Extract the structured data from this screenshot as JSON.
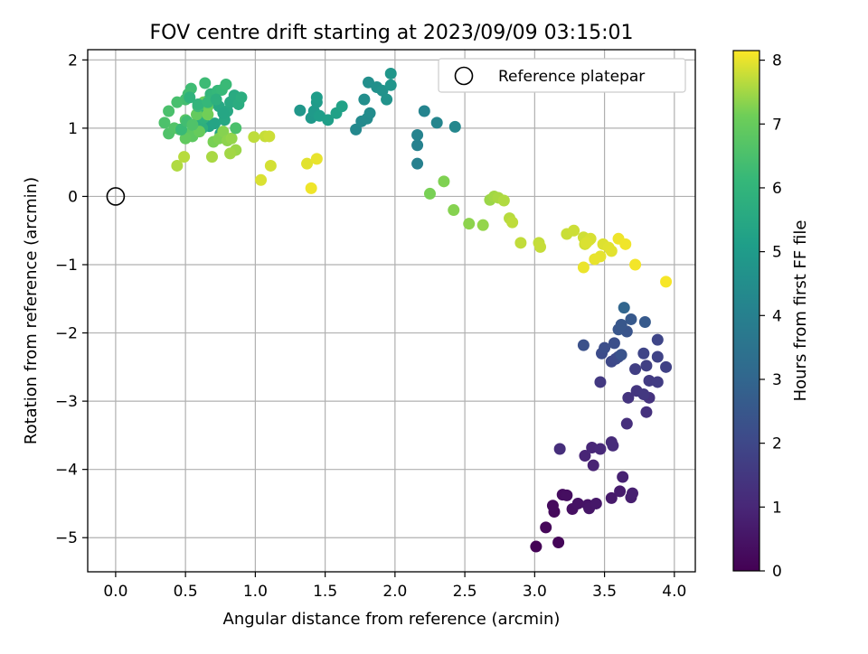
{
  "chart_data": {
    "type": "scatter",
    "title": "FOV centre drift starting at 2023/09/09 03:15:01",
    "xlabel": "Angular distance from reference (arcmin)",
    "ylabel": "Rotation from reference (arcmin)",
    "xlim": [
      -0.2,
      4.15
    ],
    "ylim": [
      -5.5,
      2.15
    ],
    "xticks": [
      0.0,
      0.5,
      1.0,
      1.5,
      2.0,
      2.5,
      3.0,
      3.5,
      4.0
    ],
    "xtick_labels": [
      "0.0",
      "0.5",
      "1.0",
      "1.5",
      "2.0",
      "2.5",
      "3.0",
      "3.5",
      "4.0"
    ],
    "yticks": [
      -5,
      -4,
      -3,
      -2,
      -1,
      0,
      1,
      2
    ],
    "ytick_labels": [
      "−5",
      "−4",
      "−3",
      "−2",
      "−1",
      "0",
      "1",
      "2"
    ],
    "grid": true,
    "legend": {
      "position": "top-right",
      "entries": [
        {
          "label": "Reference platepar",
          "marker": "open-circle"
        }
      ]
    },
    "colorbar": {
      "label": "Hours from first FF file",
      "min": 0,
      "max": 8.15,
      "ticks": [
        0,
        1,
        2,
        3,
        4,
        5,
        6,
        7,
        8
      ],
      "tick_labels": [
        "0",
        "1",
        "2",
        "3",
        "4",
        "5",
        "6",
        "7",
        "8"
      ],
      "colormap": "viridis"
    },
    "reference_point": {
      "x": 0.0,
      "y": 0.0
    },
    "points": [
      [
        3.01,
        -5.13,
        0.05
      ],
      [
        3.17,
        -5.07,
        0.1
      ],
      [
        3.08,
        -4.85,
        0.15
      ],
      [
        3.14,
        -4.62,
        0.2
      ],
      [
        3.13,
        -4.53,
        0.25
      ],
      [
        3.2,
        -4.37,
        0.3
      ],
      [
        3.23,
        -4.38,
        0.35
      ],
      [
        3.27,
        -4.58,
        0.4
      ],
      [
        3.31,
        -4.5,
        0.45
      ],
      [
        3.38,
        -4.52,
        0.5
      ],
      [
        3.39,
        -4.57,
        0.55
      ],
      [
        3.44,
        -4.5,
        0.6
      ],
      [
        3.55,
        -4.42,
        0.65
      ],
      [
        3.61,
        -4.32,
        0.7
      ],
      [
        3.69,
        -4.41,
        0.75
      ],
      [
        3.7,
        -4.35,
        0.8
      ],
      [
        3.63,
        -4.11,
        0.85
      ],
      [
        3.42,
        -3.94,
        0.9
      ],
      [
        3.36,
        -3.8,
        0.95
      ],
      [
        3.41,
        -3.68,
        1.0
      ],
      [
        3.47,
        -3.7,
        1.05
      ],
      [
        3.55,
        -3.6,
        1.1
      ],
      [
        3.56,
        -3.65,
        1.15
      ],
      [
        3.18,
        -3.7,
        1.2
      ],
      [
        3.66,
        -3.33,
        1.25
      ],
      [
        3.8,
        -3.16,
        1.3
      ],
      [
        3.82,
        -2.95,
        1.35
      ],
      [
        3.67,
        -2.95,
        1.4
      ],
      [
        3.73,
        -2.85,
        1.45
      ],
      [
        3.78,
        -2.9,
        1.5
      ],
      [
        3.47,
        -2.72,
        1.55
      ],
      [
        3.82,
        -2.7,
        1.6
      ],
      [
        3.88,
        -2.72,
        1.65
      ],
      [
        3.72,
        -2.53,
        1.7
      ],
      [
        3.8,
        -2.48,
        1.75
      ],
      [
        3.94,
        -2.5,
        1.8
      ],
      [
        3.88,
        -2.35,
        1.85
      ],
      [
        3.78,
        -2.3,
        1.9
      ],
      [
        3.88,
        -2.1,
        1.95
      ],
      [
        3.55,
        -2.42,
        2.0
      ],
      [
        3.58,
        -2.38,
        2.05
      ],
      [
        3.6,
        -2.35,
        2.1
      ],
      [
        3.48,
        -2.3,
        2.15
      ],
      [
        3.5,
        -2.22,
        2.2
      ],
      [
        3.57,
        -2.15,
        2.25
      ],
      [
        3.35,
        -2.18,
        2.3
      ],
      [
        3.62,
        -2.32,
        2.35
      ],
      [
        3.66,
        -1.98,
        2.4
      ],
      [
        3.6,
        -1.95,
        2.45
      ],
      [
        3.62,
        -1.88,
        2.5
      ],
      [
        3.69,
        -1.8,
        2.55
      ],
      [
        3.79,
        -1.84,
        2.6
      ],
      [
        3.64,
        -1.63,
        3.0
      ],
      [
        2.16,
        0.48,
        4.0
      ],
      [
        2.16,
        0.75,
        4.05
      ],
      [
        2.16,
        0.9,
        4.1
      ],
      [
        2.21,
        1.25,
        4.15
      ],
      [
        2.3,
        1.08,
        4.2
      ],
      [
        2.43,
        1.02,
        4.25
      ],
      [
        1.72,
        0.98,
        4.3
      ],
      [
        1.76,
        1.1,
        4.35
      ],
      [
        1.8,
        1.14,
        4.4
      ],
      [
        1.82,
        1.22,
        4.45
      ],
      [
        1.78,
        1.42,
        4.5
      ],
      [
        1.81,
        1.67,
        4.55
      ],
      [
        1.87,
        1.6,
        4.6
      ],
      [
        1.91,
        1.55,
        4.65
      ],
      [
        1.94,
        1.42,
        4.7
      ],
      [
        1.97,
        1.63,
        4.75
      ],
      [
        1.97,
        1.8,
        4.8
      ],
      [
        1.32,
        1.26,
        4.85
      ],
      [
        1.4,
        1.15,
        4.9
      ],
      [
        1.42,
        1.25,
        4.95
      ],
      [
        1.44,
        1.38,
        5.0
      ],
      [
        1.44,
        1.45,
        5.05
      ],
      [
        1.46,
        1.18,
        5.1
      ],
      [
        1.52,
        1.12,
        5.15
      ],
      [
        1.58,
        1.22,
        5.2
      ],
      [
        1.62,
        1.32,
        5.25
      ],
      [
        0.67,
        1.03,
        5.3
      ],
      [
        0.71,
        1.07,
        5.35
      ],
      [
        0.75,
        0.92,
        5.4
      ],
      [
        0.78,
        1.12,
        5.45
      ],
      [
        0.8,
        1.25,
        5.5
      ],
      [
        0.82,
        1.38,
        5.55
      ],
      [
        0.85,
        1.48,
        5.6
      ],
      [
        0.88,
        1.35,
        5.65
      ],
      [
        0.9,
        1.45,
        5.7
      ],
      [
        0.57,
        1.05,
        5.75
      ],
      [
        0.62,
        1.0,
        5.8
      ],
      [
        0.63,
        1.15,
        5.85
      ],
      [
        0.65,
        1.25,
        5.9
      ],
      [
        0.66,
        1.4,
        5.95
      ],
      [
        0.68,
        1.5,
        6.0
      ],
      [
        0.7,
        1.48,
        6.05
      ],
      [
        0.73,
        1.55,
        6.1
      ],
      [
        0.76,
        1.56,
        6.15
      ],
      [
        0.79,
        1.64,
        6.2
      ],
      [
        0.64,
        1.66,
        6.25
      ],
      [
        0.54,
        1.58,
        6.3
      ],
      [
        0.52,
        1.5,
        6.35
      ],
      [
        0.5,
        1.42,
        6.4
      ],
      [
        0.44,
        1.38,
        6.45
      ],
      [
        0.38,
        1.25,
        6.5
      ],
      [
        0.35,
        1.08,
        6.55
      ],
      [
        0.38,
        0.92,
        6.6
      ],
      [
        0.42,
        1.0,
        6.65
      ],
      [
        0.46,
        0.98,
        6.7
      ],
      [
        0.5,
        1.12,
        6.75
      ],
      [
        0.52,
        0.92,
        6.8
      ],
      [
        0.55,
        0.88,
        6.85
      ],
      [
        0.5,
        0.85,
        6.9
      ],
      [
        0.58,
        1.2,
        6.95
      ],
      [
        0.6,
        0.95,
        7.0
      ],
      [
        0.66,
        1.32,
        7.05
      ],
      [
        0.63,
        1.38,
        7.1
      ],
      [
        0.66,
        1.2,
        7.15
      ],
      [
        0.7,
        0.8,
        7.2
      ],
      [
        0.74,
        0.85,
        7.25
      ],
      [
        0.77,
        0.95,
        7.3
      ],
      [
        0.8,
        0.82,
        7.35
      ],
      [
        0.83,
        0.85,
        7.4
      ],
      [
        0.86,
        0.68,
        7.45
      ],
      [
        0.82,
        0.63,
        7.5
      ],
      [
        0.69,
        0.58,
        7.55
      ],
      [
        0.44,
        0.45,
        7.6
      ],
      [
        0.49,
        0.58,
        7.65
      ],
      [
        0.99,
        0.87,
        7.7
      ],
      [
        1.07,
        0.88,
        7.75
      ],
      [
        1.1,
        0.88,
        7.8
      ],
      [
        1.11,
        0.45,
        7.85
      ],
      [
        1.04,
        0.24,
        7.9
      ],
      [
        1.37,
        0.48,
        7.95
      ],
      [
        1.44,
        0.55,
        8.0
      ],
      [
        1.4,
        0.12,
        8.05
      ],
      [
        0.86,
        1.0,
        6.5
      ],
      [
        0.47,
        0.98,
        6.2
      ],
      [
        0.51,
        1.1,
        6.35
      ],
      [
        0.59,
        1.32,
        6.3
      ],
      [
        0.55,
        1.05,
        6.6
      ],
      [
        0.59,
        1.35,
        6.0
      ],
      [
        0.53,
        1.45,
        5.9
      ],
      [
        0.74,
        1.32,
        5.5
      ],
      [
        0.77,
        1.22,
        5.4
      ],
      [
        0.66,
        1.38,
        6.1
      ],
      [
        0.72,
        1.42,
        5.8
      ]
    ],
    "points_late": [
      [
        2.25,
        0.04,
        7.2
      ],
      [
        2.35,
        0.22,
        7.25
      ],
      [
        2.42,
        -0.2,
        7.3
      ],
      [
        2.53,
        -0.4,
        7.35
      ],
      [
        2.63,
        -0.42,
        7.4
      ],
      [
        2.68,
        -0.05,
        7.45
      ],
      [
        2.71,
        0.0,
        7.5
      ],
      [
        2.74,
        -0.02,
        7.55
      ],
      [
        2.78,
        -0.06,
        7.6
      ],
      [
        2.82,
        -0.32,
        7.65
      ],
      [
        2.84,
        -0.38,
        7.7
      ],
      [
        2.9,
        -0.68,
        7.72
      ],
      [
        3.03,
        -0.68,
        7.74
      ],
      [
        3.04,
        -0.74,
        7.76
      ],
      [
        3.23,
        -0.55,
        7.78
      ],
      [
        3.28,
        -0.5,
        7.8
      ],
      [
        3.35,
        -0.6,
        7.82
      ],
      [
        3.36,
        -0.7,
        7.84
      ],
      [
        3.39,
        -0.64,
        7.86
      ],
      [
        3.4,
        -0.62,
        7.88
      ],
      [
        3.37,
        -0.68,
        7.9
      ],
      [
        3.49,
        -0.7,
        7.92
      ],
      [
        3.53,
        -0.75,
        7.94
      ],
      [
        3.55,
        -0.8,
        7.96
      ],
      [
        3.47,
        -0.88,
        7.98
      ],
      [
        3.43,
        -0.92,
        8.0
      ],
      [
        3.35,
        -1.04,
        8.02
      ],
      [
        3.6,
        -0.62,
        8.04
      ],
      [
        3.65,
        -0.7,
        8.06
      ],
      [
        3.72,
        -1.0,
        8.08
      ],
      [
        3.94,
        -1.25,
        8.1
      ]
    ]
  }
}
